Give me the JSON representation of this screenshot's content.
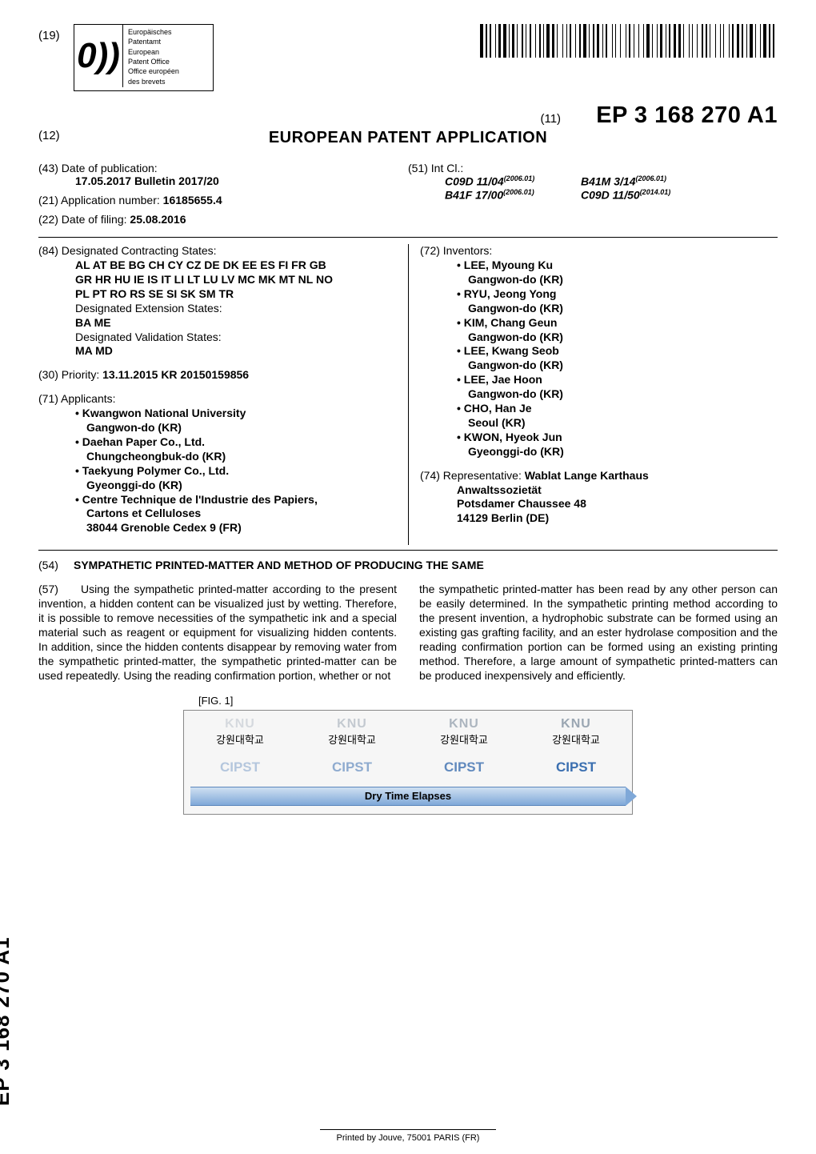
{
  "header": {
    "code19": "(19)",
    "logo_glyph": "0))",
    "logo_lines": [
      "Europäisches",
      "Patentamt",
      "European",
      "Patent Office",
      "Office européen",
      "des brevets"
    ],
    "code11": "(11)",
    "pub_number": "EP 3 168 270 A1",
    "code12": "(12)",
    "app_title": "EUROPEAN PATENT APPLICATION"
  },
  "biblio_top": {
    "left": [
      {
        "tag": "(43)",
        "line1": "Date of publication:",
        "line2": "17.05.2017  Bulletin 2017/20",
        "line2_bold": true
      },
      {
        "tag": "(21)",
        "line1": "Application number: ",
        "value": "16185655.4",
        "value_bold": true
      },
      {
        "tag": "(22)",
        "line1": "Date of filing: ",
        "value": "25.08.2016",
        "value_bold": true
      }
    ],
    "right": {
      "tag": "(51)",
      "label": "Int Cl.:",
      "classes": [
        {
          "code": "C09D 11/04",
          "ver": "(2006.01)"
        },
        {
          "code": "B41M 3/14",
          "ver": "(2006.01)"
        },
        {
          "code": "B41F 17/00",
          "ver": "(2006.01)"
        },
        {
          "code": "C09D 11/50",
          "ver": "(2014.01)"
        }
      ]
    }
  },
  "biblio_main": {
    "left": [
      {
        "tag": "(84)",
        "lead": "Designated Contracting States:",
        "bold_lines": [
          "AL AT BE BG CH CY CZ DE DK EE ES FI FR GB",
          "GR HR HU IE IS IT LI LT LU LV MC MK MT NL NO",
          "PL PT RO RS SE SI SK SM TR"
        ],
        "sub": [
          {
            "plain": "Designated Extension States:",
            "bold": "BA ME"
          },
          {
            "plain": "Designated Validation States:",
            "bold": "MA MD"
          }
        ]
      },
      {
        "tag": "(30)",
        "lead": "Priority: ",
        "value": "13.11.2015  KR 20150159856",
        "value_bold": true
      },
      {
        "tag": "(71)",
        "lead": "Applicants:",
        "bullets": [
          {
            "l1": "Kwangwon National University",
            "l2": "Gangwon-do (KR)"
          },
          {
            "l1": "Daehan Paper Co., Ltd.",
            "l2": "Chungcheongbuk-do (KR)"
          },
          {
            "l1": "Taekyung Polymer Co., Ltd.",
            "l2": "Gyeonggi-do (KR)"
          },
          {
            "l1": "Centre Technique de l'Industrie des Papiers,",
            "l2": "Cartons et Celluloses",
            "l3": "38044 Grenoble Cedex 9 (FR)"
          }
        ]
      }
    ],
    "right": [
      {
        "tag": "(72)",
        "lead": "Inventors:",
        "bullets": [
          {
            "l1": "LEE, Myoung Ku",
            "l2": "Gangwon-do (KR)"
          },
          {
            "l1": "RYU, Jeong Yong",
            "l2": "Gangwon-do (KR)"
          },
          {
            "l1": "KIM, Chang Geun",
            "l2": "Gangwon-do (KR)"
          },
          {
            "l1": "LEE, Kwang Seob",
            "l2": "Gangwon-do (KR)"
          },
          {
            "l1": "LEE, Jae Hoon",
            "l2": "Gangwon-do (KR)"
          },
          {
            "l1": "CHO, Han Je",
            "l2": "Seoul (KR)"
          },
          {
            "l1": "KWON, Hyeok Jun",
            "l2": "Gyeonggi-do (KR)"
          }
        ]
      },
      {
        "tag": "(74)",
        "lead": "Representative: ",
        "bold_lines": [
          "Wablat Lange Karthaus",
          "Anwaltssozietät",
          "Potsdamer Chaussee 48",
          "14129 Berlin (DE)"
        ]
      }
    ]
  },
  "title": {
    "tag": "(54)",
    "text": "SYMPATHETIC PRINTED-MATTER AND METHOD OF PRODUCING THE SAME"
  },
  "abstract": {
    "tag": "(57)",
    "left": "Using the sympathetic printed-matter according to the present invention, a hidden content can be visualized just by wetting. Therefore, it is possible to remove necessities of the sympathetic ink and a special material such as reagent or equipment for visualizing hidden contents. In addition, since the hidden contents disappear by removing water from the sympathetic printed-matter, the sympathetic printed-matter can be used repeatedly. Using the reading confirmation portion, whether or not",
    "right": "the sympathetic printed-matter has been read by any other person can be easily determined. In the sympathetic printing method according to the present invention, a hydrophobic substrate can be formed using an existing gas grafting facility, and an ester hydrolase composition and the reading confirmation portion can be formed using an existing printing method. Therefore, a large amount of sympathetic printed-matters can be produced inexpensively and efficiently."
  },
  "figure": {
    "label": "[FIG. 1]",
    "knu": "KNU",
    "knu_sub": "강원대학교",
    "cipst": "CIPST",
    "bar_text": "Dry Time Elapses"
  },
  "spine": "EP 3 168 270 A1",
  "footer": "Printed by Jouve, 75001 PARIS (FR)",
  "barcode": {
    "widths": [
      3,
      1,
      2,
      1,
      1,
      3,
      1,
      1,
      2,
      1,
      3,
      1,
      1,
      1,
      2,
      1,
      1,
      3,
      1,
      1,
      1,
      2,
      1,
      3,
      1,
      1,
      2,
      1,
      1,
      1,
      3,
      1,
      2,
      1,
      1,
      3,
      1,
      2,
      1,
      1,
      1,
      3,
      1,
      1,
      2,
      1,
      3,
      1,
      1,
      2,
      1,
      1,
      3,
      1,
      1,
      1,
      2,
      3,
      1,
      1,
      1,
      2,
      1,
      3,
      1,
      1,
      2,
      1,
      1,
      3,
      1,
      2,
      1,
      1,
      3,
      1,
      1,
      2,
      1,
      1,
      3,
      1,
      1,
      1,
      2,
      1,
      3,
      1,
      2,
      1,
      1,
      3,
      1,
      1,
      1,
      2,
      1,
      3,
      1,
      1,
      2,
      1,
      1,
      3,
      1,
      2,
      1,
      1,
      1,
      3,
      1,
      1,
      2,
      1,
      3,
      1,
      1,
      2,
      1,
      1,
      3,
      1,
      1,
      2,
      1,
      1,
      3,
      1,
      2,
      1,
      1,
      3
    ]
  }
}
